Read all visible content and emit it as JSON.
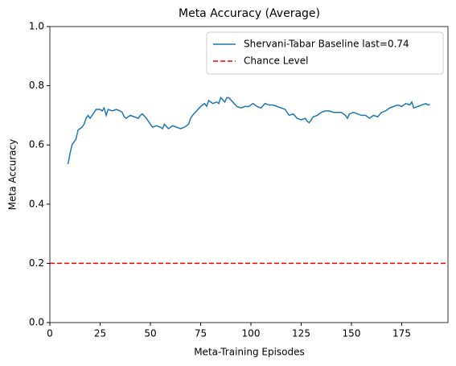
{
  "chart_data": {
    "type": "line",
    "title": "Meta Accuracy (Average)",
    "x_label": "Meta-Training Episodes",
    "y_label": "Meta Accuracy",
    "x": [
      9,
      10,
      11,
      13,
      14,
      16,
      17,
      18,
      19,
      20,
      21,
      23,
      25,
      26,
      27,
      28,
      29,
      31,
      33,
      35,
      36,
      37,
      38,
      40,
      42,
      44,
      45,
      46,
      48,
      50,
      51,
      53,
      55,
      56,
      57,
      59,
      61,
      63,
      65,
      67,
      69,
      70,
      71,
      73,
      75,
      77,
      78,
      79,
      81,
      83,
      84,
      85,
      87,
      88,
      89,
      91,
      93,
      95,
      97,
      99,
      101,
      103,
      105,
      107,
      109,
      111,
      113,
      115,
      117,
      119,
      121,
      123,
      125,
      127,
      128,
      129,
      131,
      133,
      135,
      137,
      139,
      141,
      143,
      145,
      147,
      148,
      149,
      151,
      153,
      155,
      157,
      159,
      161,
      163,
      165,
      167,
      169,
      171,
      173,
      175,
      177,
      179,
      180,
      181,
      183,
      185,
      187,
      188,
      189
    ],
    "series": [
      {
        "name": "Shervani-Tabar Baseline last=0.74",
        "color": "#1f77b4",
        "values": [
          0.535,
          0.57,
          0.6,
          0.62,
          0.65,
          0.66,
          0.67,
          0.69,
          0.7,
          0.69,
          0.7,
          0.72,
          0.72,
          0.715,
          0.725,
          0.7,
          0.72,
          0.715,
          0.72,
          0.715,
          0.71,
          0.695,
          0.69,
          0.7,
          0.695,
          0.69,
          0.7,
          0.705,
          0.69,
          0.67,
          0.66,
          0.665,
          0.66,
          0.655,
          0.67,
          0.655,
          0.665,
          0.66,
          0.655,
          0.66,
          0.67,
          0.69,
          0.7,
          0.715,
          0.73,
          0.74,
          0.73,
          0.75,
          0.74,
          0.745,
          0.74,
          0.76,
          0.745,
          0.76,
          0.76,
          0.745,
          0.73,
          0.725,
          0.73,
          0.73,
          0.74,
          0.73,
          0.725,
          0.74,
          0.735,
          0.735,
          0.73,
          0.725,
          0.72,
          0.7,
          0.705,
          0.69,
          0.685,
          0.69,
          0.68,
          0.675,
          0.695,
          0.7,
          0.71,
          0.715,
          0.715,
          0.71,
          0.71,
          0.71,
          0.7,
          0.69,
          0.705,
          0.71,
          0.705,
          0.7,
          0.7,
          0.69,
          0.7,
          0.695,
          0.71,
          0.715,
          0.725,
          0.73,
          0.735,
          0.73,
          0.74,
          0.735,
          0.745,
          0.725,
          0.73,
          0.735,
          0.74,
          0.735,
          0.737
        ]
      }
    ],
    "hlines": [
      {
        "name": "Chance Level",
        "value": 0.2,
        "color": "#ff0000"
      }
    ],
    "xlim": [
      0,
      198
    ],
    "xticks": [
      0,
      25,
      50,
      75,
      100,
      125,
      150,
      175
    ],
    "ylim": [
      0,
      1
    ],
    "yticks": [
      {
        "value": 0,
        "label": "0.0"
      },
      0.2,
      0.4,
      0.6,
      0.8,
      {
        "value": 1,
        "label": "1.0"
      }
    ],
    "legend": "upper right"
  }
}
